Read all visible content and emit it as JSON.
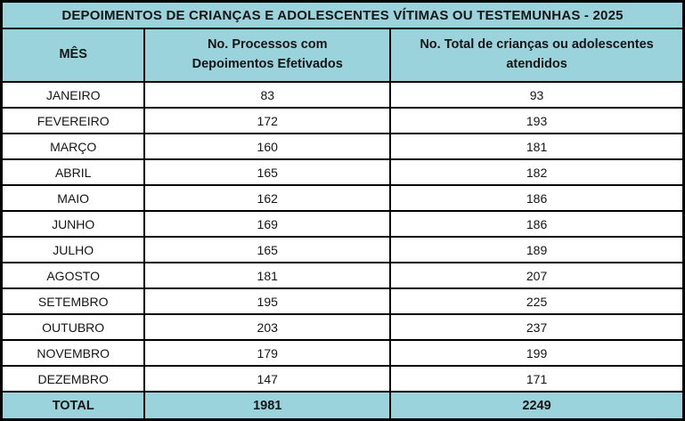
{
  "table": {
    "title": "DEPOIMENTOS DE CRIANÇAS E ADOLESCENTES VÍTIMAS OU TESTEMUNHAS - 2025",
    "columns": [
      "MÊS",
      "No. Processos com Depoimentos Efetivados",
      "No. Total de crianças ou adolescentes atendidos"
    ],
    "rows": [
      [
        "JANEIRO",
        "83",
        "93"
      ],
      [
        "FEVEREIRO",
        "172",
        "193"
      ],
      [
        "MARÇO",
        "160",
        "181"
      ],
      [
        "ABRIL",
        "165",
        "182"
      ],
      [
        "MAIO",
        "162",
        "186"
      ],
      [
        "JUNHO",
        "169",
        "186"
      ],
      [
        "JULHO",
        "165",
        "189"
      ],
      [
        "AGOSTO",
        "181",
        "207"
      ],
      [
        "SETEMBRO",
        "195",
        "225"
      ],
      [
        "OUTUBRO",
        "203",
        "237"
      ],
      [
        "NOVEMBRO",
        "179",
        "199"
      ],
      [
        "DEZEMBRO",
        "147",
        "171"
      ]
    ],
    "total_row": [
      "TOTAL",
      "1981",
      "2249"
    ]
  },
  "colors": {
    "header_bg": "#9bd3dd",
    "total_bg": "#9bd3dd",
    "row_bg": "#ffffff",
    "border": "#000000",
    "text": "#151515"
  },
  "chart_data": {
    "type": "table",
    "title": "DEPOIMENTOS DE CRIANÇAS E ADOLESCENTES VÍTIMAS OU TESTEMUNHAS - 2025",
    "categories": [
      "JANEIRO",
      "FEVEREIRO",
      "MARÇO",
      "ABRIL",
      "MAIO",
      "JUNHO",
      "JULHO",
      "AGOSTO",
      "SETEMBRO",
      "OUTUBRO",
      "NOVEMBRO",
      "DEZEMBRO"
    ],
    "series": [
      {
        "name": "No. Processos com Depoimentos Efetivados",
        "values": [
          83,
          172,
          160,
          165,
          162,
          169,
          165,
          181,
          195,
          203,
          179,
          147
        ],
        "total": 1981
      },
      {
        "name": "No. Total de crianças ou adolescentes atendidos",
        "values": [
          93,
          193,
          181,
          182,
          186,
          186,
          189,
          207,
          225,
          237,
          199,
          171
        ],
        "total": 2249
      }
    ],
    "layout": "title row + header row + 12 month rows + total row, grid on, header and total rows highlighted light blue"
  }
}
